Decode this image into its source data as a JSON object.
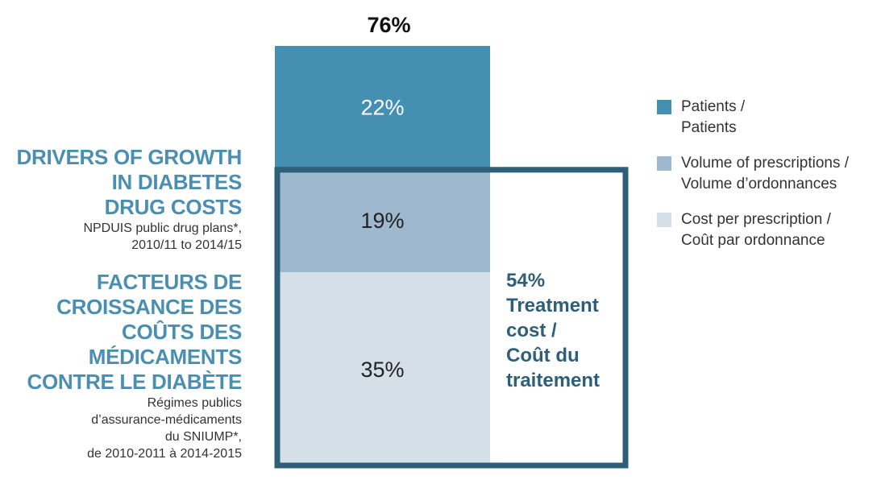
{
  "title_en": {
    "main": "DRIVERS OF GROWTH\nIN DIABETES\nDRUG COSTS",
    "sub": "NPDUIS public drug plans*,\n2010/11 to 2014/15"
  },
  "title_fr": {
    "main": "FACTEURS DE\nCROISSANCE DES\nCOÛTS DES\nMÉDICAMENTS\nCONTRE LE DIABÈTE",
    "sub": "Régimes publics\nd’assurance-médicaments\ndu SNIUMP*,\nde 2010-2011 à 2014-2015"
  },
  "chart_data": {
    "type": "bar",
    "total_label": "76%",
    "segments": [
      {
        "name": "Patients / Patients",
        "value": 22,
        "label": "22%",
        "color": "#458fb3"
      },
      {
        "name": "Volume of prescriptions / Volume d’ordonnances",
        "value": 19,
        "label": "19%",
        "color": "#9eb9cf"
      },
      {
        "name": "Cost per prescription / Coût par ordonnance",
        "value": 35,
        "label": "35%",
        "color": "#d5dfe8"
      }
    ],
    "bracket": {
      "covers_segments": [
        "Volume of prescriptions / Volume d’ordonnances",
        "Cost per prescription / Coût par ordonnance"
      ],
      "label_lines": [
        "54%",
        "Treatment",
        "cost /",
        "Coût du",
        "traitement"
      ],
      "color": "#2e5f78"
    }
  },
  "legend": [
    {
      "label": "Patients /\nPatients",
      "color": "#458fb3"
    },
    {
      "label": "Volume of prescriptions /\nVolume d’ordonnances",
      "color": "#9eb9cf"
    },
    {
      "label": "Cost per prescription /\nCoût par ordonnance",
      "color": "#d5dfe8"
    }
  ]
}
